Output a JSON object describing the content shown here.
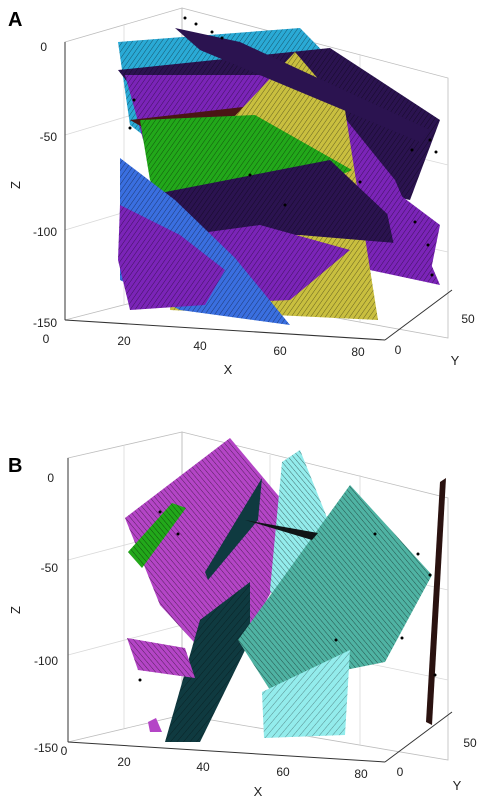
{
  "colors": {
    "blue": "#3a6fe0",
    "purple": "#7b24b8",
    "yellow": "#c9bf3f",
    "green": "#22a81a",
    "cyan": "#2aaad6",
    "dark_purple": "#2b1350",
    "dark_red": "#4a1515",
    "magenta": "#b445c6",
    "teal": "#4fb3a3",
    "light_cyan": "#93ecec",
    "dark_teal": "#0f3a40",
    "dark_brown": "#2a1210"
  },
  "chart_data": [
    {
      "panel_label": "A",
      "type": "3d-surface",
      "xlabel": "X",
      "ylabel": "Y",
      "zlabel": "Z",
      "x_ticks": [
        "20",
        "40",
        "60",
        "80"
      ],
      "y_ticks": [
        "0",
        "50"
      ],
      "z_ticks": [
        "0",
        "-50",
        "-100",
        "-150"
      ],
      "x_corner_tick": "0",
      "xlim": [
        0,
        80
      ],
      "ylim": [
        0,
        60
      ],
      "zlim": [
        -150,
        0
      ],
      "grid": true
    },
    {
      "panel_label": "B",
      "type": "3d-surface",
      "xlabel": "X",
      "ylabel": "Y",
      "zlabel": "Z",
      "x_ticks": [
        "20",
        "40",
        "60",
        "80"
      ],
      "y_ticks": [
        "0",
        "50"
      ],
      "z_ticks": [
        "0",
        "-50",
        "-100",
        "-150"
      ],
      "x_corner_tick": "0",
      "xlim": [
        0,
        80
      ],
      "ylim": [
        0,
        60
      ],
      "zlim": [
        -150,
        0
      ],
      "grid": true
    }
  ]
}
